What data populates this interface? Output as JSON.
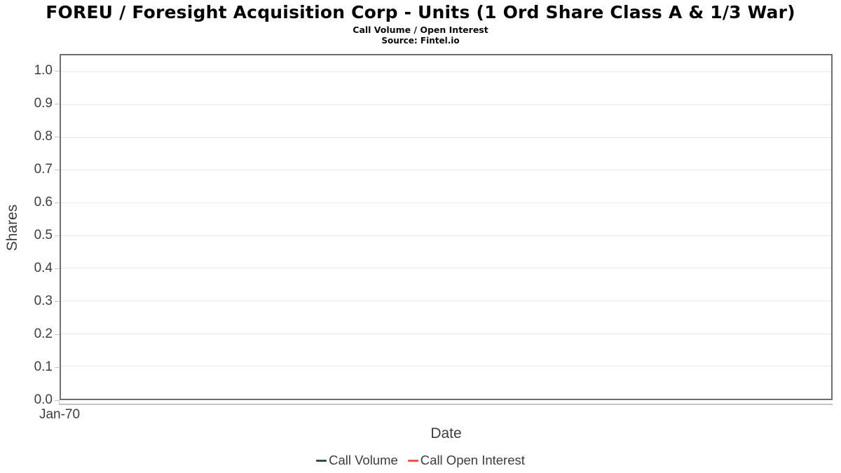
{
  "header": {
    "title": "FOREU / Foresight Acquisition Corp - Units (1 Ord Share Class A & 1/3 War)",
    "subtitle": "Call Volume / Open Interest",
    "source": "Source: Fintel.io"
  },
  "axes": {
    "y_label": "Shares",
    "x_label": "Date",
    "x_tick_label": "Jan-70"
  },
  "legend": {
    "items": [
      {
        "label": "Call Volume",
        "color": "#2d5438"
      },
      {
        "label": "Call Open Interest",
        "color": "#f8514d"
      }
    ]
  },
  "colors": {
    "plot_border": "#707070",
    "gridline": "#e6e6e6",
    "axis_line": "#c2c2c2",
    "tick_mark": "#c8c8c8",
    "text": "#3d3d3d"
  },
  "chart_data": {
    "type": "line",
    "title": "FOREU / Foresight Acquisition Corp - Units (1 Ord Share Class A & 1/3 War)",
    "subtitle": "Call Volume / Open Interest",
    "source": "Source: Fintel.io",
    "xlabel": "Date",
    "ylabel": "Shares",
    "x_tick_labels": [
      "Jan-70"
    ],
    "y_ticks": [
      0.0,
      0.1,
      0.2,
      0.3,
      0.4,
      0.5,
      0.6,
      0.7,
      0.8,
      0.9,
      1.0
    ],
    "ylim": [
      0.0,
      1.05
    ],
    "grid": true,
    "legend_position": "bottom",
    "series": [
      {
        "name": "Call Volume",
        "color": "#2d5438",
        "x": [],
        "values": []
      },
      {
        "name": "Call Open Interest",
        "color": "#f8514d",
        "x": [],
        "values": []
      }
    ],
    "note": "Plot area is empty; no data points are drawn for either series."
  }
}
